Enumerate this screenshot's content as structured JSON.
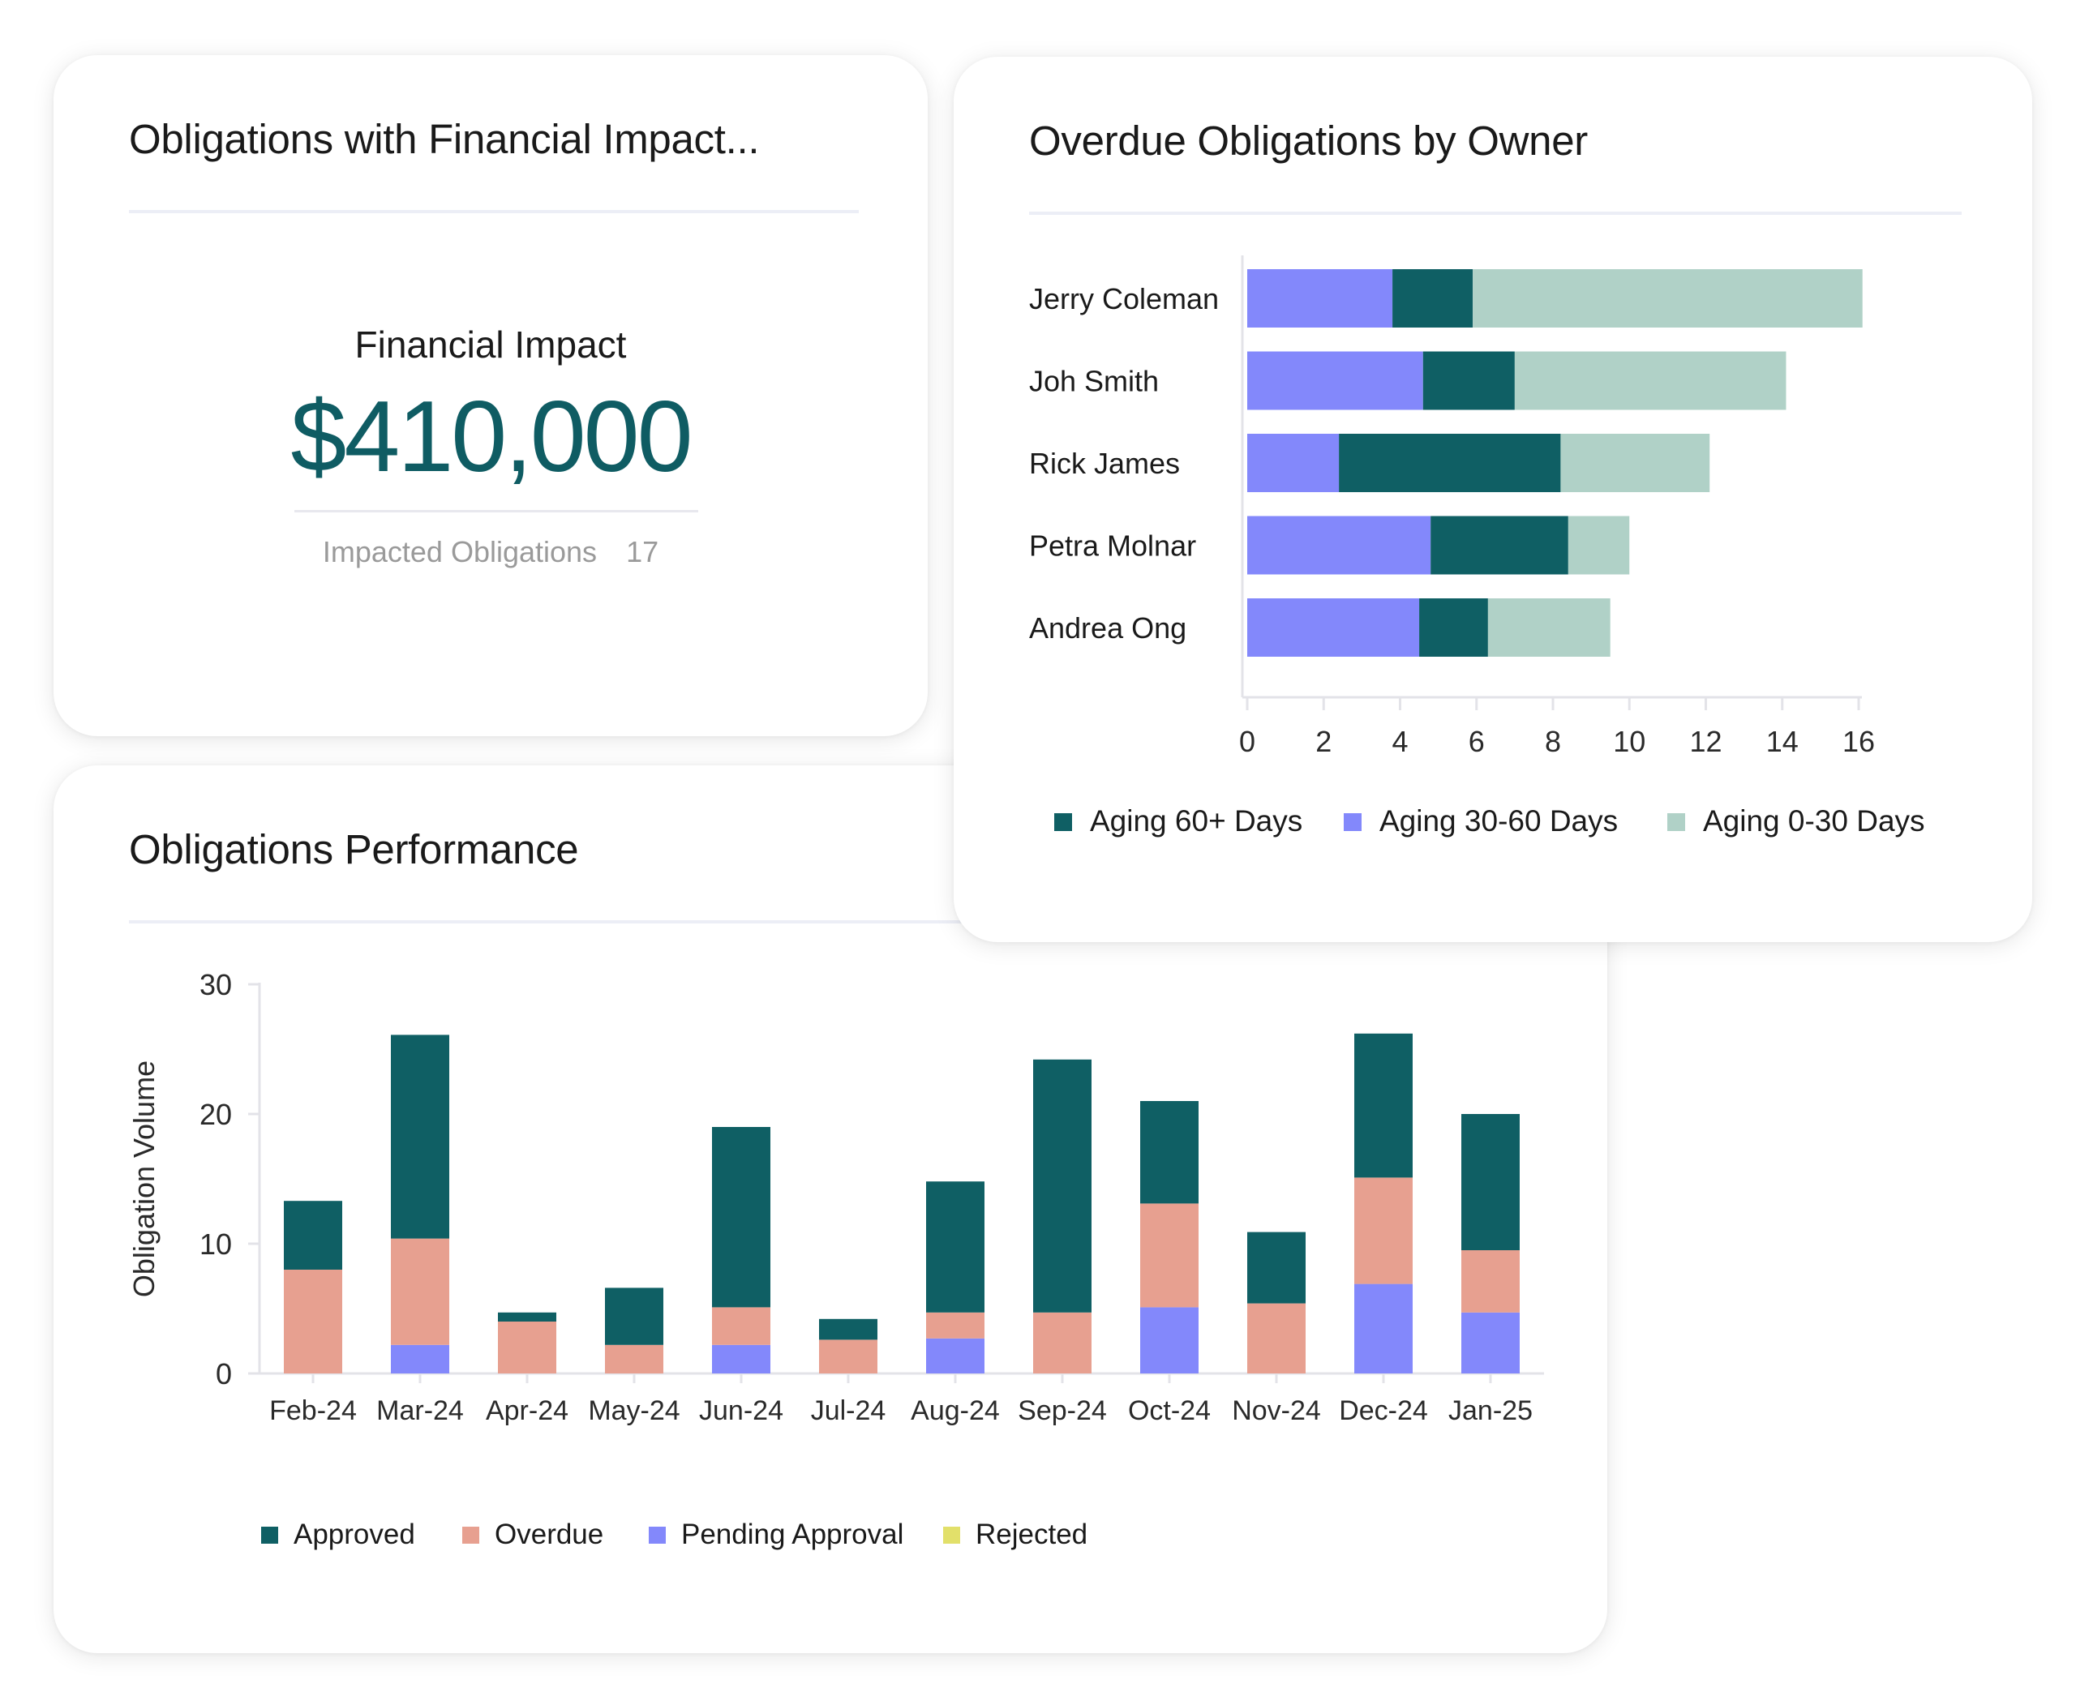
{
  "financial_card": {
    "title": "Obligations with Financial Impact...",
    "impact_label": "Financial Impact",
    "impact_value": "$410,000",
    "impacted_label": "Impacted Obligations",
    "impacted_count": "17"
  },
  "owner_card": {
    "title": "Overdue Obligations by Owner"
  },
  "performance_card": {
    "title": "Obligations Performance"
  },
  "colors": {
    "dark_teal": "#0f5f64",
    "periwinkle": "#8388fb",
    "mint": "#b0d1c7",
    "salmon": "#e7a090",
    "yellow": "#e2e06a",
    "axis": "#e3e3e8",
    "text": "#1a1a1a"
  },
  "chart_data": [
    {
      "type": "bar",
      "orientation": "horizontal",
      "stacked": true,
      "title": "Overdue Obligations by Owner",
      "categories": [
        "Jerry Coleman",
        "Joh Smith",
        "Rick James",
        "Petra Molnar",
        "Andrea Ong"
      ],
      "series": [
        {
          "name": "Aging 30-60 Days",
          "color": "#8388fb",
          "values": [
            3.8,
            4.6,
            2.4,
            4.8,
            4.5
          ]
        },
        {
          "name": "Aging 60+ Days",
          "color": "#0f5f64",
          "values": [
            2.1,
            2.4,
            5.8,
            3.6,
            1.8
          ]
        },
        {
          "name": "Aging 0-30 Days",
          "color": "#b0d1c7",
          "values": [
            10.2,
            7.1,
            3.9,
            1.6,
            3.2
          ]
        }
      ],
      "legend": [
        "Aging 60+ Days",
        "Aging 30-60 Days",
        "Aging 0-30 Days"
      ],
      "xlim": [
        0,
        16
      ],
      "xticks": [
        "0",
        "2",
        "4",
        "6",
        "8",
        "10",
        "12",
        "14",
        "16"
      ],
      "legend_position": "bottom"
    },
    {
      "type": "bar",
      "orientation": "vertical",
      "stacked": true,
      "title": "Obligations Performance",
      "ylabel": "Obligation Volume",
      "categories": [
        "Feb-24",
        "Mar-24",
        "Apr-24",
        "May-24",
        "Jun-24",
        "Jul-24",
        "Aug-24",
        "Sep-24",
        "Oct-24",
        "Nov-24",
        "Dec-24",
        "Jan-25"
      ],
      "series": [
        {
          "name": "Pending Approval",
          "color": "#8388fb",
          "values": [
            0,
            2.2,
            0,
            0,
            2.2,
            0,
            2.7,
            0,
            5.1,
            0,
            6.9,
            4.7
          ]
        },
        {
          "name": "Overdue",
          "color": "#e7a090",
          "values": [
            8.0,
            8.2,
            4.0,
            2.2,
            2.9,
            2.6,
            2.0,
            4.7,
            8.0,
            5.4,
            8.2,
            4.8
          ]
        },
        {
          "name": "Approved",
          "color": "#0f5f64",
          "values": [
            5.3,
            15.7,
            0.7,
            4.4,
            13.9,
            1.6,
            10.1,
            19.5,
            7.9,
            5.5,
            11.1,
            10.5
          ]
        },
        {
          "name": "Rejected",
          "color": "#e2e06a",
          "values": [
            0,
            0,
            0,
            0,
            0,
            0,
            0,
            0,
            0,
            0,
            0,
            0
          ]
        }
      ],
      "legend": [
        "Approved",
        "Overdue",
        "Pending Approval",
        "Rejected"
      ],
      "ylim": [
        0,
        30
      ],
      "yticks": [
        "0",
        "10",
        "20",
        "30"
      ],
      "legend_position": "bottom-left"
    }
  ]
}
